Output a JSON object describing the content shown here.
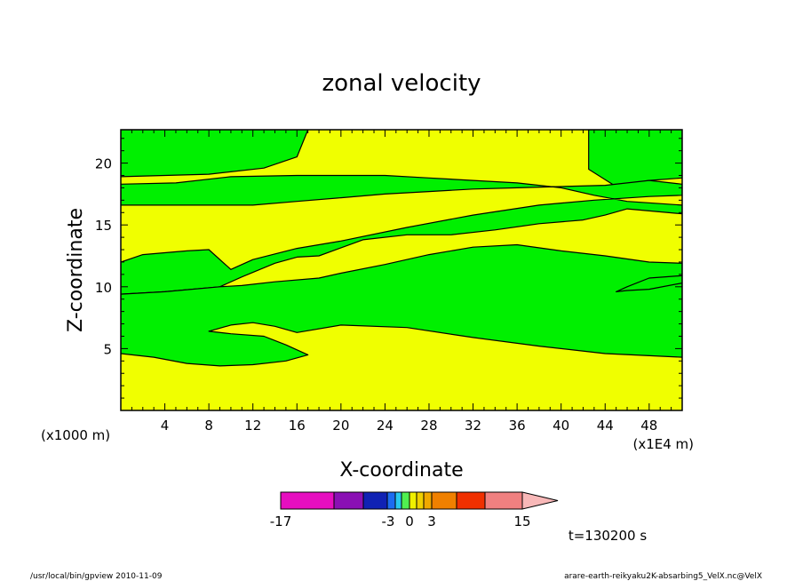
{
  "chart_data": {
    "type": "heatmap",
    "title": "zonal velocity",
    "xlabel": "X-coordinate",
    "ylabel": "Z-coordinate",
    "x_units_note": "(x1E4 m)",
    "z_units_note": "(x1000 m)",
    "xlim": [
      0,
      51
    ],
    "ylim": [
      0,
      22.7
    ],
    "x_ticks": [
      4,
      8,
      12,
      16,
      20,
      24,
      28,
      32,
      36,
      40,
      44,
      48
    ],
    "y_ticks": [
      5,
      10,
      15,
      20
    ],
    "x_tick_labels": [
      "4",
      "8",
      "12",
      "16",
      "20",
      "24",
      "28",
      "32",
      "36",
      "40",
      "44",
      "48"
    ],
    "y_tick_labels": [
      "5",
      "10",
      "15",
      "20"
    ],
    "regions": [
      {
        "fill": "yellow",
        "points": [
          [
            0,
            0
          ],
          [
            51,
            0
          ],
          [
            51,
            22.7
          ],
          [
            0,
            22.7
          ]
        ]
      },
      {
        "fill": "green",
        "points": [
          [
            0,
            22.7
          ],
          [
            17,
            22.7
          ],
          [
            16,
            20.5
          ],
          [
            13,
            19.6
          ],
          [
            8,
            19.1
          ],
          [
            0,
            18.9
          ]
        ]
      },
      {
        "fill": "green",
        "points": [
          [
            42.5,
            22.7
          ],
          [
            51,
            22.7
          ],
          [
            51,
            18.8
          ],
          [
            48,
            18.6
          ],
          [
            45,
            18.1
          ],
          [
            42.5,
            19.5
          ]
        ]
      },
      {
        "fill": "green",
        "points": [
          [
            0,
            18.3
          ],
          [
            5,
            18.4
          ],
          [
            10,
            18.9
          ],
          [
            16,
            19.0
          ],
          [
            20,
            19.0
          ],
          [
            24,
            19.0
          ],
          [
            28,
            18.8
          ],
          [
            32,
            18.6
          ],
          [
            36,
            18.4
          ],
          [
            40,
            18.0
          ],
          [
            43,
            17.4
          ],
          [
            46,
            16.9
          ],
          [
            51,
            16.6
          ],
          [
            51,
            15.9
          ],
          [
            46,
            16.3
          ],
          [
            44,
            15.8
          ],
          [
            42,
            15.4
          ],
          [
            38,
            15.1
          ],
          [
            34,
            14.6
          ],
          [
            30,
            14.2
          ],
          [
            26,
            14.2
          ],
          [
            22,
            13.8
          ],
          [
            18,
            12.5
          ],
          [
            16,
            12.4
          ],
          [
            14,
            11.9
          ],
          [
            11,
            10.8
          ],
          [
            9,
            10.0
          ],
          [
            4,
            9.6
          ],
          [
            0,
            9.4
          ],
          [
            0,
            12.0
          ],
          [
            2,
            12.6
          ],
          [
            6,
            12.9
          ],
          [
            8,
            13.0
          ],
          [
            10,
            11.4
          ],
          [
            12,
            12.2
          ],
          [
            16,
            13.1
          ],
          [
            20,
            13.7
          ],
          [
            26,
            14.8
          ],
          [
            32,
            15.8
          ],
          [
            38,
            16.6
          ],
          [
            43,
            17.0
          ],
          [
            48,
            17.3
          ],
          [
            51,
            17.4
          ],
          [
            51,
            18.3
          ],
          [
            48,
            18.6
          ],
          [
            44,
            18.2
          ],
          [
            40,
            18.1
          ],
          [
            36,
            18.0
          ],
          [
            32,
            17.9
          ],
          [
            28,
            17.7
          ],
          [
            24,
            17.5
          ],
          [
            20,
            17.2
          ],
          [
            16,
            16.9
          ],
          [
            12,
            16.6
          ],
          [
            8,
            16.6
          ],
          [
            4,
            16.6
          ],
          [
            0,
            16.6
          ]
        ]
      },
      {
        "fill": "green",
        "points": [
          [
            0,
            9.4
          ],
          [
            4,
            9.6
          ],
          [
            9,
            10.0
          ],
          [
            11,
            10.1
          ],
          [
            14,
            10.4
          ],
          [
            18,
            10.7
          ],
          [
            20,
            11.1
          ],
          [
            24,
            11.8
          ],
          [
            28,
            12.6
          ],
          [
            32,
            13.2
          ],
          [
            36,
            13.4
          ],
          [
            40,
            12.9
          ],
          [
            44,
            12.5
          ],
          [
            48,
            12.0
          ],
          [
            51,
            11.9
          ],
          [
            51,
            10.3
          ],
          [
            48,
            9.8
          ],
          [
            46,
            9.7
          ],
          [
            45,
            9.6
          ],
          [
            46,
            10.0
          ],
          [
            48,
            10.7
          ],
          [
            51,
            10.9
          ],
          [
            51,
            4.3
          ],
          [
            44,
            4.6
          ],
          [
            38,
            5.2
          ],
          [
            32,
            5.9
          ],
          [
            26,
            6.7
          ],
          [
            20,
            6.9
          ],
          [
            16,
            6.3
          ],
          [
            14,
            6.8
          ],
          [
            12,
            7.1
          ],
          [
            10,
            6.9
          ],
          [
            8,
            6.4
          ],
          [
            10,
            6.2
          ],
          [
            13,
            6.0
          ],
          [
            15,
            5.3
          ],
          [
            17,
            4.5
          ],
          [
            15,
            4.0
          ],
          [
            12,
            3.7
          ],
          [
            9,
            3.6
          ],
          [
            6,
            3.8
          ],
          [
            3,
            4.3
          ],
          [
            0,
            4.6
          ]
        ]
      }
    ],
    "colorbar": {
      "labels": [
        "-17",
        "-3",
        "0",
        "3",
        "15"
      ],
      "colors": [
        "#e60ec0",
        "#8a10b4",
        "#1022b4",
        "#1c6cf0",
        "#28c8f0",
        "#50f050",
        "#f0f000",
        "#f0d000",
        "#f0a800",
        "#f08000",
        "#f03000",
        "#f08080",
        "#f8b8b8"
      ]
    },
    "time_label": "t=130200 s",
    "footer_left": "/usr/local/bin/gpview  2010-11-09",
    "footer_right": "arare-earth-reikyaku2K-absarbing5_VelX.nc@VelX"
  },
  "colors": {
    "yellow": "#f0ff00",
    "green": "#00f000"
  }
}
